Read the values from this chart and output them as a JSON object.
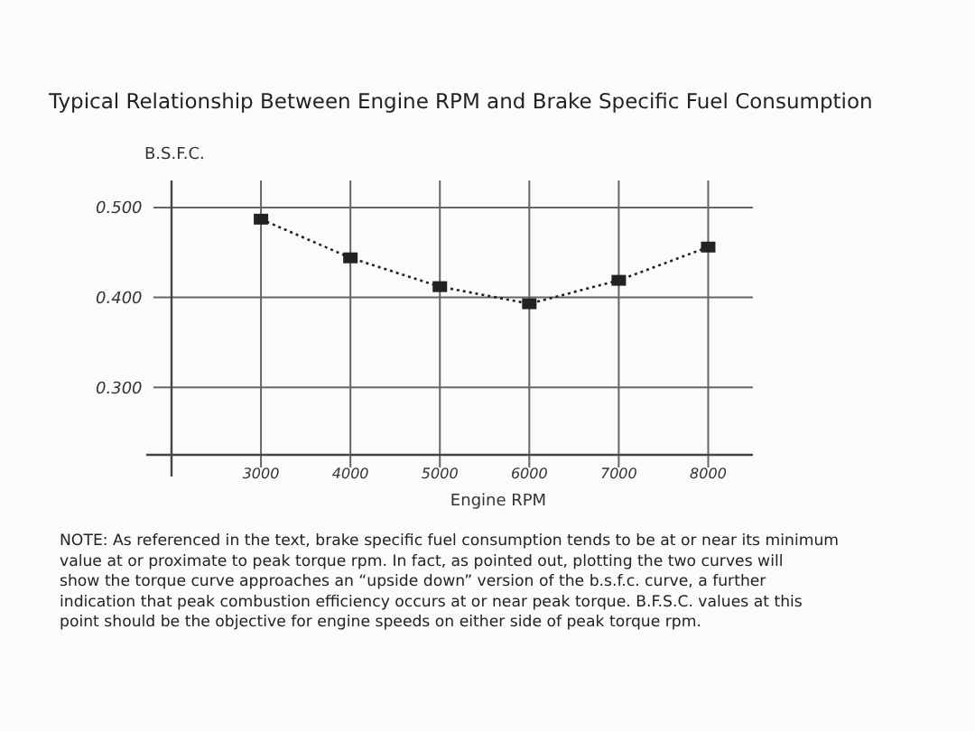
{
  "chart_data": {
    "type": "line",
    "title": "Typical Relationship Between Engine RPM and Brake Specific Fuel Consumption",
    "xlabel": "Engine RPM",
    "ylabel": "B.S.F.C.",
    "x": [
      3000,
      4000,
      5000,
      6000,
      7000,
      8000
    ],
    "series": [
      {
        "color": "#222222",
        "values": [
          0.487,
          0.444,
          0.412,
          0.393,
          0.419,
          0.456
        ]
      }
    ],
    "xlim": [
      2000,
      8500
    ],
    "xticks": [
      3000,
      4000,
      5000,
      6000,
      7000,
      8000
    ],
    "ylim": [
      0.225,
      0.53
    ],
    "yticks": [
      {
        "value": 0.3,
        "label": "0.300"
      },
      {
        "value": 0.4,
        "label": "0.400"
      },
      {
        "value": 0.5,
        "label": "0.500"
      }
    ],
    "grid": true,
    "marker": "square",
    "line_style": "dotted",
    "annotations": [
      "NOTE: As referenced in the text, brake specific fuel consumption tends to be at or near its minimum value at or proximate to peak torque rpm.  In fact, as pointed out, plotting the two curves will show the torque curve approaches an “upside down” version of the b.s.f.c. curve, a further indication that peak combustion efficiency occurs at or near peak torque.  B.F.S.C. values at this point should be the objective for engine speeds on either side of peak torque rpm."
    ]
  }
}
